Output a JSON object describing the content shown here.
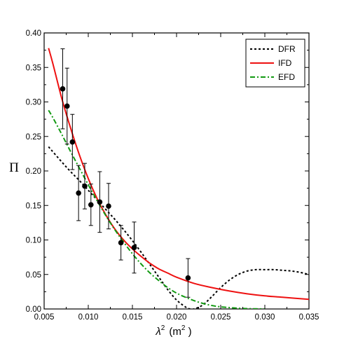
{
  "chart_data": {
    "type": "line",
    "xlabel": "λ² (m²)",
    "xlabel_parts": {
      "symbol": "λ",
      "sup": "2",
      "unit_open": "(m",
      "unit_sup": "2",
      "unit_close": " )"
    },
    "ylabel": "Π",
    "xlim": [
      0.005,
      0.035
    ],
    "ylim": [
      0.0,
      0.4
    ],
    "xticks": [
      0.005,
      0.01,
      0.015,
      0.02,
      0.025,
      0.03,
      0.035
    ],
    "xtick_labels": [
      "0.005",
      "0.010",
      "0.015",
      "0.020",
      "0.025",
      "0.030",
      "0.035"
    ],
    "yticks": [
      0.0,
      0.05,
      0.1,
      0.15,
      0.2,
      0.25,
      0.3,
      0.35,
      0.4
    ],
    "ytick_labels": [
      "0.00",
      "0.05",
      "0.10",
      "0.15",
      "0.20",
      "0.25",
      "0.30",
      "0.35",
      "0.40"
    ],
    "grid": false,
    "legend": "top-right",
    "series": [
      {
        "name": "DFR",
        "color": "#000000",
        "style": "dotted",
        "x": [
          0.0055,
          0.007,
          0.008,
          0.009,
          0.01,
          0.011,
          0.012,
          0.013,
          0.014,
          0.015,
          0.016,
          0.017,
          0.018,
          0.019,
          0.02,
          0.021,
          0.0215,
          0.022,
          0.023,
          0.024,
          0.025,
          0.026,
          0.027,
          0.028,
          0.029,
          0.03,
          0.031,
          0.032,
          0.033,
          0.034,
          0.035
        ],
        "y": [
          0.235,
          0.213,
          0.199,
          0.186,
          0.172,
          0.158,
          0.144,
          0.13,
          0.115,
          0.099,
          0.082,
          0.064,
          0.046,
          0.028,
          0.013,
          0.003,
          0.0,
          0.0,
          0.006,
          0.018,
          0.031,
          0.042,
          0.05,
          0.055,
          0.057,
          0.057,
          0.057,
          0.056,
          0.055,
          0.053,
          0.05
        ]
      },
      {
        "name": "IFD",
        "color": "#ee1111",
        "style": "solid",
        "x": [
          0.0055,
          0.006,
          0.007,
          0.008,
          0.009,
          0.01,
          0.011,
          0.012,
          0.013,
          0.014,
          0.015,
          0.016,
          0.017,
          0.018,
          0.019,
          0.02,
          0.022,
          0.024,
          0.026,
          0.028,
          0.03,
          0.032,
          0.035
        ],
        "y": [
          0.378,
          0.355,
          0.305,
          0.262,
          0.223,
          0.189,
          0.16,
          0.136,
          0.116,
          0.1,
          0.087,
          0.076,
          0.066,
          0.058,
          0.052,
          0.046,
          0.037,
          0.031,
          0.026,
          0.022,
          0.019,
          0.017,
          0.014
        ]
      },
      {
        "name": "EFD",
        "color": "#119911",
        "style": "dashdot",
        "x": [
          0.0055,
          0.006,
          0.007,
          0.008,
          0.009,
          0.01,
          0.011,
          0.012,
          0.013,
          0.014,
          0.015,
          0.016,
          0.017,
          0.018,
          0.019,
          0.02,
          0.021,
          0.022,
          0.023,
          0.024,
          0.025,
          0.026,
          0.027,
          0.028,
          0.029,
          0.03
        ],
        "y": [
          0.288,
          0.277,
          0.253,
          0.228,
          0.204,
          0.18,
          0.157,
          0.135,
          0.115,
          0.097,
          0.08,
          0.065,
          0.052,
          0.041,
          0.031,
          0.023,
          0.017,
          0.012,
          0.008,
          0.005,
          0.003,
          0.002,
          0.001,
          0.0005,
          0.0002,
          0.0
        ]
      }
    ],
    "data_points": {
      "color": "#000000",
      "x": [
        0.0071,
        0.0076,
        0.0082,
        0.0089,
        0.0096,
        0.0103,
        0.0113,
        0.0123,
        0.0137,
        0.0152,
        0.0213
      ],
      "y": [
        0.319,
        0.294,
        0.242,
        0.168,
        0.178,
        0.151,
        0.155,
        0.149,
        0.096,
        0.089,
        0.045
      ],
      "yerr": [
        0.058,
        0.055,
        0.04,
        0.04,
        0.033,
        0.03,
        0.044,
        0.033,
        0.025,
        0.037,
        0.028
      ]
    }
  }
}
